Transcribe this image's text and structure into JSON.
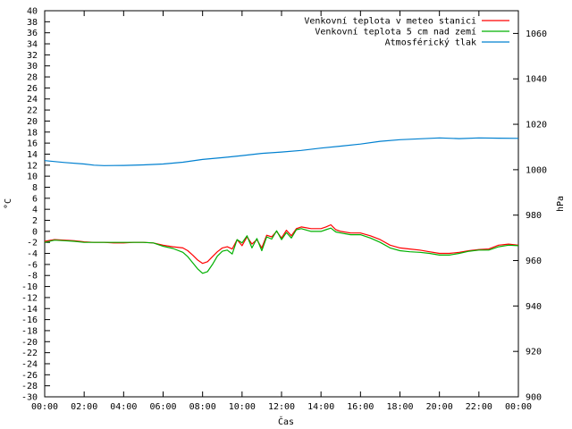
{
  "chart_data": {
    "type": "line",
    "xlabel": "Čas",
    "ylabel": "°C",
    "y2label": "hPa",
    "x_ticks": [
      "00:00",
      "02:00",
      "04:00",
      "06:00",
      "08:00",
      "10:00",
      "12:00",
      "14:00",
      "16:00",
      "18:00",
      "20:00",
      "22:00",
      "00:00"
    ],
    "xlim": [
      0,
      24
    ],
    "ylim": [
      -30,
      40
    ],
    "y_ticks": [
      40,
      38,
      36,
      34,
      32,
      30,
      28,
      26,
      24,
      22,
      20,
      18,
      16,
      14,
      12,
      10,
      8,
      6,
      4,
      2,
      0,
      -2,
      -4,
      -6,
      -8,
      -10,
      -12,
      -14,
      -16,
      -18,
      -20,
      -22,
      -24,
      -26,
      -28,
      -30
    ],
    "y2lim": [
      900,
      1070
    ],
    "y2_ticks": [
      1060,
      1040,
      1020,
      1000,
      980,
      960,
      940,
      920,
      900
    ],
    "grid": false,
    "legend_position": "top-right",
    "series": [
      {
        "name": "Venkovní teplota v meteo stanici",
        "color": "#ff0000",
        "axis": "left",
        "x": [
          0,
          0.5,
          1,
          1.5,
          2,
          2.5,
          3,
          3.5,
          4,
          4.5,
          5,
          5.5,
          6,
          6.5,
          7,
          7.25,
          7.5,
          7.75,
          8,
          8.25,
          8.5,
          8.75,
          9,
          9.25,
          9.5,
          9.75,
          10,
          10.25,
          10.5,
          10.75,
          11,
          11.25,
          11.5,
          11.75,
          12,
          12.25,
          12.5,
          12.75,
          13,
          13.5,
          14,
          14.25,
          14.5,
          14.75,
          15,
          15.5,
          16,
          16.5,
          17,
          17.5,
          18,
          18.5,
          19,
          19.5,
          20,
          20.5,
          21,
          21.5,
          22,
          22.5,
          23,
          23.5,
          24
        ],
        "values": [
          -1.8,
          -1.5,
          -1.6,
          -1.7,
          -1.9,
          -2.0,
          -2.0,
          -2.1,
          -2.1,
          -2.0,
          -2.0,
          -2.1,
          -2.5,
          -2.8,
          -3.0,
          -3.5,
          -4.3,
          -5.2,
          -5.8,
          -5.5,
          -4.6,
          -3.7,
          -3.0,
          -2.8,
          -3.2,
          -1.5,
          -2.6,
          -1.0,
          -2.3,
          -1.5,
          -3.0,
          -0.7,
          -1.0,
          0.0,
          -1.2,
          0.2,
          -0.8,
          0.5,
          0.8,
          0.5,
          0.5,
          0.8,
          1.2,
          0.3,
          0.0,
          -0.3,
          -0.3,
          -0.8,
          -1.5,
          -2.5,
          -3.0,
          -3.2,
          -3.4,
          -3.7,
          -4.0,
          -4.0,
          -3.8,
          -3.5,
          -3.3,
          -3.2,
          -2.5,
          -2.3,
          -2.5
        ]
      },
      {
        "name": "Venkovní teplota 5 cm nad zemí",
        "color": "#00b000",
        "axis": "left",
        "x": [
          0,
          0.5,
          1,
          1.5,
          2,
          2.5,
          3,
          3.5,
          4,
          4.5,
          5,
          5.5,
          6,
          6.5,
          7,
          7.25,
          7.5,
          7.75,
          8,
          8.25,
          8.5,
          8.75,
          9,
          9.25,
          9.5,
          9.75,
          10,
          10.25,
          10.5,
          10.75,
          11,
          11.25,
          11.5,
          11.75,
          12,
          12.25,
          12.5,
          12.75,
          13,
          13.5,
          14,
          14.25,
          14.5,
          14.75,
          15,
          15.5,
          16,
          16.5,
          17,
          17.5,
          18,
          18.5,
          19,
          19.5,
          20,
          20.5,
          21,
          21.5,
          22,
          22.5,
          23,
          23.5,
          24
        ],
        "values": [
          -2.0,
          -1.6,
          -1.7,
          -1.8,
          -2.0,
          -2.0,
          -2.0,
          -2.0,
          -2.0,
          -2.0,
          -2.0,
          -2.1,
          -2.7,
          -3.1,
          -3.8,
          -4.6,
          -5.7,
          -6.8,
          -7.6,
          -7.3,
          -6.0,
          -4.5,
          -3.6,
          -3.4,
          -4.1,
          -1.5,
          -2.1,
          -0.8,
          -3.0,
          -1.3,
          -3.5,
          -1.0,
          -1.4,
          0.1,
          -1.5,
          -0.2,
          -1.2,
          0.3,
          0.5,
          0.0,
          0.0,
          0.3,
          0.6,
          -0.1,
          -0.3,
          -0.6,
          -0.6,
          -1.2,
          -2.0,
          -3.0,
          -3.5,
          -3.7,
          -3.8,
          -4.0,
          -4.3,
          -4.3,
          -4.0,
          -3.6,
          -3.4,
          -3.4,
          -2.8,
          -2.5,
          -2.6
        ]
      },
      {
        "name": "Atmosférický tlak",
        "color": "#0080d0",
        "axis": "right",
        "x": [
          0,
          1,
          2,
          2.5,
          3,
          4,
          5,
          6,
          7,
          8,
          9,
          10,
          11,
          12,
          13,
          14,
          15,
          16,
          17,
          18,
          19,
          20,
          21,
          22,
          23,
          24
        ],
        "values": [
          1004,
          1003.2,
          1002.5,
          1002.0,
          1001.8,
          1001.9,
          1002.1,
          1002.5,
          1003.3,
          1004.5,
          1005.3,
          1006.2,
          1007.2,
          1007.8,
          1008.5,
          1009.5,
          1010.4,
          1011.3,
          1012.5,
          1013.2,
          1013.6,
          1014.0,
          1013.7,
          1014.0,
          1013.9,
          1013.8
        ]
      }
    ]
  }
}
